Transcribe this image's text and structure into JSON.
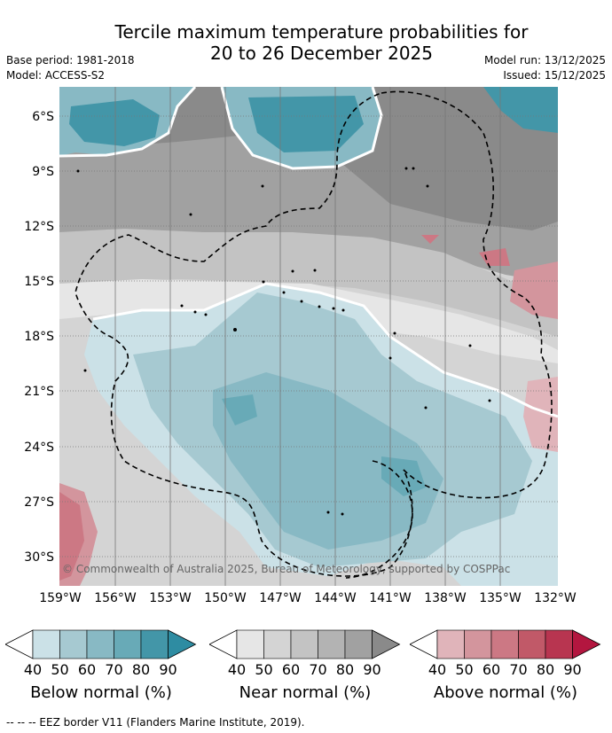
{
  "title": {
    "line1": "Tercile maximum temperature probabilities for",
    "line2": "20 to 26 December 2025"
  },
  "meta": {
    "base_period": "Base period: 1981-2018",
    "model": "Model: ACCESS-S2",
    "model_run": "Model run: 13/12/2025",
    "issued": "Issued: 15/12/2025"
  },
  "map": {
    "lat_labels": [
      "6°S",
      "9°S",
      "12°S",
      "15°S",
      "18°S",
      "21°S",
      "24°S",
      "27°S",
      "30°S"
    ],
    "lon_labels": [
      "159°W",
      "156°W",
      "153°W",
      "150°W",
      "147°W",
      "144°W",
      "141°W",
      "138°W",
      "135°W",
      "132°W"
    ],
    "copyright": "© Commonwealth of Australia 2025, Bureau of Meteorology, supported by COSPPac"
  },
  "legend": {
    "ticks": [
      "40",
      "50",
      "60",
      "70",
      "80",
      "90"
    ],
    "below": {
      "label": "Below normal (%)",
      "colors": [
        "#cbe1e7",
        "#a6c9d1",
        "#88b9c4",
        "#68aab7",
        "#4396a8",
        "#2e8ca2"
      ]
    },
    "near": {
      "label": "Near normal (%)",
      "colors": [
        "#e6e6e6",
        "#d4d4d4",
        "#c3c3c3",
        "#b3b3b3",
        "#a1a1a1",
        "#8a8a8a"
      ]
    },
    "above": {
      "label": "Above normal (%)",
      "colors": [
        "#e0b4ba",
        "#d3959d",
        "#cc7884",
        "#c15968",
        "#b83550",
        "#b3163f"
      ]
    }
  },
  "footnote": "-- -- -- EEZ border V11 (Flanders Marine Institute, 2019)."
}
